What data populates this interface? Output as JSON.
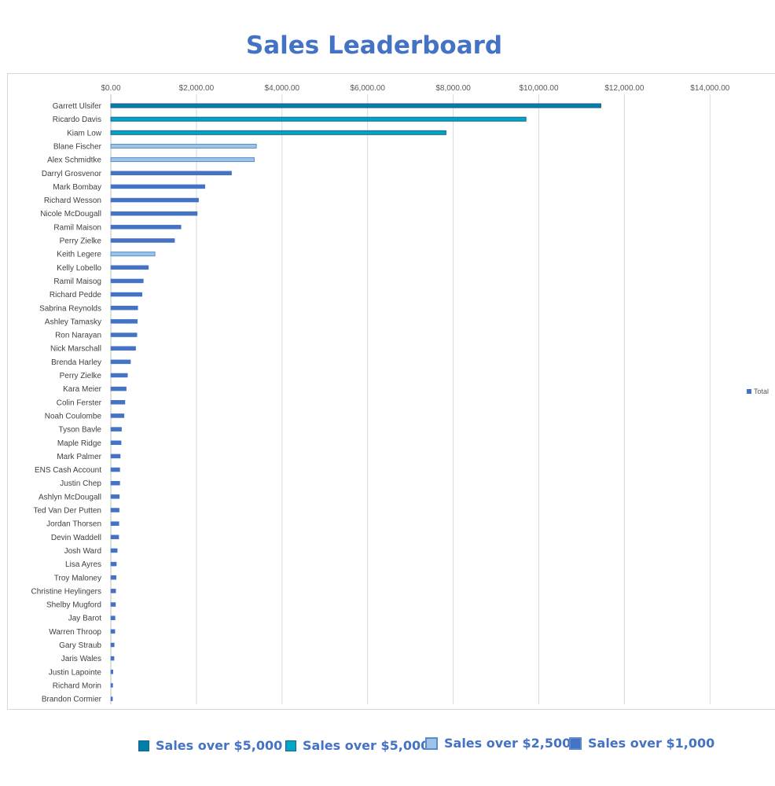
{
  "chart_data": {
    "type": "bar",
    "orientation": "horizontal",
    "title": "Sales Leaderboard",
    "xlim": [
      0,
      15000
    ],
    "xticks": [
      0,
      2000,
      4000,
      6000,
      8000,
      10000,
      12000,
      14000
    ],
    "xtick_labels": [
      "$0.00",
      "$2,000.00",
      "$4,000.00",
      "$6,000.00",
      "$8,000.00",
      "$10,000.00",
      "$12,000.00",
      "$14,000.00"
    ],
    "grid": true,
    "legend_position": "right",
    "series": [
      {
        "name": "Total"
      }
    ],
    "categories": [
      "Garrett Ulsifer",
      "Ricardo Davis",
      "Kiam Low",
      "Blane Fischer",
      "Alex Schmidtke",
      "Darryl Grosvenor",
      "Mark Bombay",
      "Richard Wesson",
      "Nicole McDougall",
      "Ramil Maison",
      "Perry Zielke",
      "Keith Legere",
      "Kelly Lobello",
      "Ramil Maisog",
      "Richard Pedde",
      "Sabrina Reynolds",
      "Ashley Tamasky",
      "Ron Narayan",
      "Nick Marschall",
      "Brenda Harley",
      "Perry Zielke",
      "Kara Meier",
      "Colin Ferster",
      "Noah Coulombe",
      "Tyson Bavle",
      "Maple Ridge",
      "Mark Palmer",
      "ENS Cash Account",
      "Justin Chep",
      "Ashlyn McDougall",
      "Ted Van Der Putten",
      "Jordan Thorsen",
      "Devin Waddell",
      "Josh Ward",
      "Lisa Ayres",
      "Troy Maloney",
      "Christine Heylingers",
      "Shelby Mugford",
      "Jay Barot",
      "Warren Throop",
      "Gary Straub",
      "Jaris Wales",
      "Justin Lapointe",
      "Richard Morin",
      "Brandon Cormier"
    ],
    "values": [
      11450,
      9700,
      7830,
      3400,
      3350,
      2820,
      2200,
      2050,
      2020,
      1640,
      1490,
      1030,
      880,
      760,
      730,
      630,
      620,
      610,
      580,
      460,
      390,
      360,
      330,
      310,
      250,
      240,
      220,
      210,
      210,
      200,
      195,
      190,
      185,
      150,
      130,
      125,
      115,
      110,
      100,
      95,
      80,
      75,
      50,
      45,
      40
    ],
    "tiers": [
      "top",
      "high",
      "high",
      "mid",
      "mid",
      "base",
      "base",
      "base",
      "base",
      "base",
      "base",
      "mid",
      "base",
      "base",
      "base",
      "base",
      "base",
      "base",
      "base",
      "base",
      "base",
      "base",
      "base",
      "base",
      "base",
      "base",
      "base",
      "base",
      "base",
      "base",
      "base",
      "base",
      "base",
      "base",
      "base",
      "base",
      "base",
      "base",
      "base",
      "base",
      "base",
      "base",
      "base",
      "base",
      "base"
    ]
  },
  "tier_styles": {
    "top": {
      "fill": "#0080A8",
      "stroke": "#1F5F8B"
    },
    "high": {
      "fill": "#00A7C4",
      "stroke": "#1F5F8B"
    },
    "mid": {
      "fill": "#9DC3E6",
      "stroke": "#5B8CC8"
    },
    "base": {
      "fill": "#4472C4",
      "stroke": "#4472C4"
    }
  },
  "bottom_legend": [
    {
      "label": "Sales over $5,000",
      "fill": "#0080A8",
      "stroke": "#1F5F8B"
    },
    {
      "label": "Sales over $5,000",
      "fill": "#00A7C4",
      "stroke": "#1F5F8B"
    },
    {
      "label": "Sales over $2,500",
      "fill": "#9DC3E6",
      "stroke": "#5B8CC8"
    },
    {
      "label": "Sales over $1,000",
      "fill": "#4472C4",
      "stroke": "#5B8CC8"
    }
  ]
}
